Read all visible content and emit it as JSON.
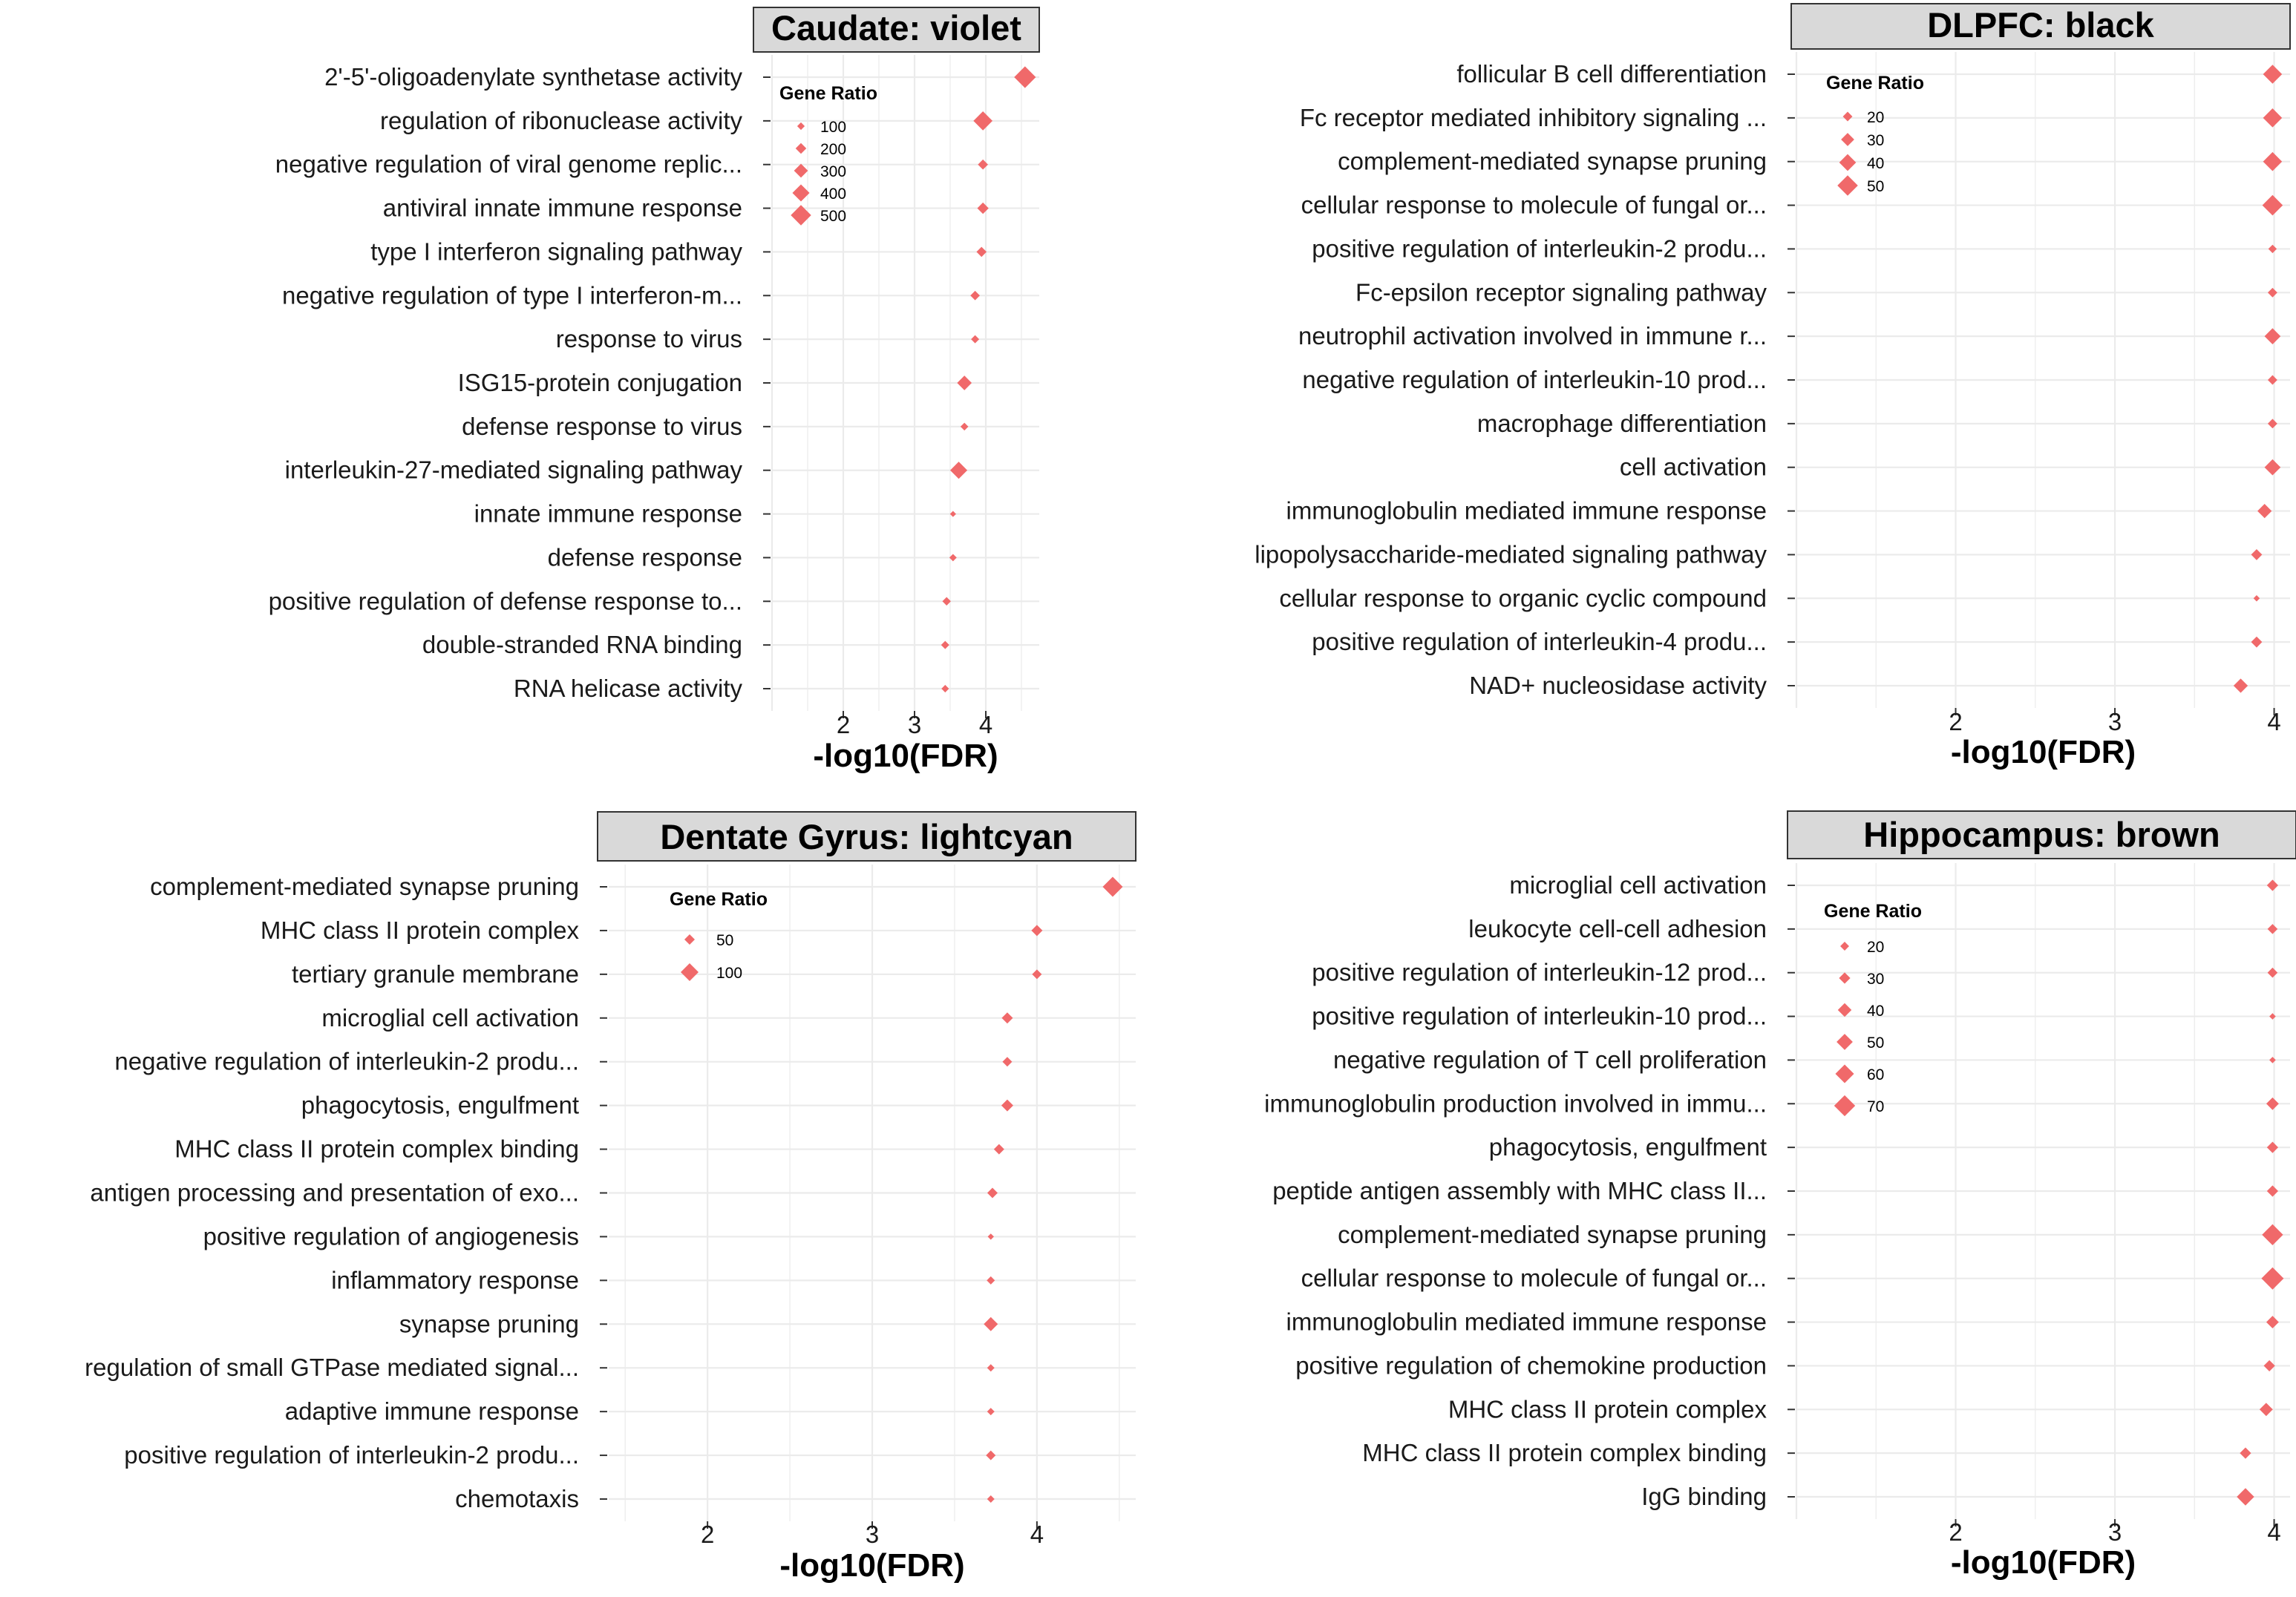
{
  "colors": {
    "point": "#F0696A",
    "grid": "#EBEBEB",
    "tick": "#333333",
    "strip_bg": "#D9D9D9",
    "strip_border": "#333333",
    "text": "#1A1A1A"
  },
  "chart_data": [
    {
      "type": "scatter",
      "title": "Caudate: violet",
      "xlabel": "-log10(FDR)",
      "xlim": [
        1.0,
        4.75
      ],
      "xticks": [
        "2",
        "3",
        "4"
      ],
      "xtick_values": [
        2,
        3,
        4
      ],
      "grid": true,
      "legend_title": "Gene Ratio",
      "legend_placement": "top-left",
      "legend": [
        {
          "label": "100",
          "value": 100
        },
        {
          "label": "200",
          "value": 200
        },
        {
          "label": "300",
          "value": 300
        },
        {
          "label": "400",
          "value": 400
        },
        {
          "label": "500",
          "value": 500
        }
      ],
      "size_range": [
        50,
        560
      ],
      "categories": [
        "2'-5'-oligoadenylate synthetase activity",
        "regulation of ribonuclease activity",
        "negative regulation of viral genome replic...",
        "antiviral innate immune response",
        "type I interferon signaling pathway",
        "negative regulation of type I interferon-m...",
        "response to virus",
        "ISG15-protein conjugation",
        "defense response to virus",
        "interleukin-27-mediated signaling pathway",
        "innate immune response",
        "defense response",
        "positive regulation of defense response to...",
        "double-stranded RNA binding",
        "RNA helicase activity"
      ],
      "x": [
        4.55,
        3.96,
        3.96,
        3.96,
        3.94,
        3.85,
        3.85,
        3.7,
        3.7,
        3.62,
        3.54,
        3.54,
        3.45,
        3.43,
        3.43
      ],
      "gene_ratio": [
        540,
        460,
        180,
        220,
        180,
        160,
        120,
        320,
        110,
        400,
        55,
        95,
        130,
        120,
        100
      ]
    },
    {
      "type": "scatter",
      "title": "DLPFC: black",
      "xlabel": "-log10(FDR)",
      "xlim": [
        1.0,
        4.1
      ],
      "xticks": [
        "2",
        "3",
        "4"
      ],
      "xtick_values": [
        2,
        3,
        4
      ],
      "grid": true,
      "legend_title": "Gene Ratio",
      "legend_placement": "top-left",
      "legend": [
        {
          "label": "20",
          "value": 20
        },
        {
          "label": "30",
          "value": 30
        },
        {
          "label": "40",
          "value": 40
        },
        {
          "label": "50",
          "value": 50
        }
      ],
      "size_range": [
        10,
        55
      ],
      "categories": [
        "follicular B cell differentiation",
        "Fc receptor mediated inhibitory signaling ...",
        "complement-mediated synapse pruning",
        "cellular response to molecule of fungal or...",
        "positive regulation of interleukin-2 produ...",
        "Fc-epsilon receptor signaling pathway",
        "neutrophil activation involved in immune r...",
        "negative regulation of interleukin-10 prod...",
        "macrophage differentiation",
        "cell activation",
        "immunoglobulin mediated immune response",
        "lipopolysaccharide-mediated signaling pathway",
        "cellular response to organic cyclic compound",
        "positive regulation of interleukin-4 produ...",
        "NAD+ nucleosidase activity"
      ],
      "x": [
        3.99,
        3.99,
        3.99,
        3.99,
        3.99,
        3.99,
        3.99,
        3.99,
        3.99,
        3.99,
        3.94,
        3.89,
        3.89,
        3.89,
        3.79
      ],
      "gene_ratio": [
        46,
        46,
        46,
        50,
        17,
        20,
        38,
        20,
        20,
        38,
        33,
        24,
        11,
        24,
        33
      ]
    },
    {
      "type": "scatter",
      "title": "Dentate Gyrus: lightcyan",
      "xlabel": "-log10(FDR)",
      "xlim": [
        1.4,
        4.6
      ],
      "xticks": [
        "2",
        "3",
        "4"
      ],
      "xtick_values": [
        2,
        3,
        4
      ],
      "grid": true,
      "legend_title": "Gene Ratio",
      "legend_placement": "top-left",
      "legend": [
        {
          "label": "50",
          "value": 50
        },
        {
          "label": "100",
          "value": 100
        }
      ],
      "size_range": [
        20,
        130
      ],
      "categories": [
        "complement-mediated synapse pruning",
        "MHC class II protein complex",
        "tertiary granule membrane",
        "microglial cell activation",
        "negative regulation of interleukin-2 produ...",
        "phagocytosis, engulfment",
        "MHC class II protein complex binding",
        "antigen processing and presentation of exo...",
        "positive regulation of angiogenesis",
        "inflammatory response",
        "synapse pruning",
        "regulation of small GTPase mediated signal...",
        "adaptive immune response",
        "positive regulation of interleukin-2 produ...",
        "chemotaxis"
      ],
      "x": [
        4.46,
        4.0,
        4.0,
        3.82,
        3.82,
        3.82,
        3.77,
        3.73,
        3.72,
        3.72,
        3.72,
        3.72,
        3.72,
        3.72,
        3.72
      ],
      "gene_ratio": [
        115,
        55,
        45,
        55,
        45,
        60,
        50,
        50,
        22,
        35,
        75,
        30,
        30,
        45,
        30
      ]
    },
    {
      "type": "scatter",
      "title": "Hippocampus: brown",
      "xlabel": "-log10(FDR)",
      "xlim": [
        1.0,
        4.1
      ],
      "xticks": [
        "2",
        "3",
        "4"
      ],
      "xtick_values": [
        2,
        3,
        4
      ],
      "grid": true,
      "legend_title": "Gene Ratio",
      "legend_placement": "top-left",
      "legend": [
        {
          "label": "20",
          "value": 20
        },
        {
          "label": "30",
          "value": 30
        },
        {
          "label": "40",
          "value": 40
        },
        {
          "label": "50",
          "value": 50
        },
        {
          "label": "60",
          "value": 60
        },
        {
          "label": "70",
          "value": 70
        }
      ],
      "size_range": [
        8,
        75
      ],
      "categories": [
        "microglial cell activation",
        "leukocyte cell-cell adhesion",
        "positive regulation of interleukin-12 prod...",
        "positive regulation of interleukin-10 prod...",
        "negative regulation of T cell proliferation",
        "immunoglobulin production involved in immu...",
        "phagocytosis, engulfment",
        "peptide antigen assembly with MHC class II...",
        "complement-mediated synapse pruning",
        "cellular response to molecule of fungal or...",
        "immunoglobulin mediated immune response",
        "positive regulation of chemokine production",
        "MHC class II protein complex",
        "MHC class II protein complex binding",
        "IgG binding"
      ],
      "x": [
        3.99,
        3.99,
        3.99,
        3.99,
        3.99,
        3.99,
        3.99,
        3.99,
        3.99,
        3.99,
        3.99,
        3.97,
        3.95,
        3.82,
        3.82
      ],
      "gene_ratio": [
        30,
        25,
        25,
        10,
        10,
        35,
        30,
        30,
        70,
        75,
        35,
        30,
        38,
        30,
        55
      ]
    }
  ]
}
